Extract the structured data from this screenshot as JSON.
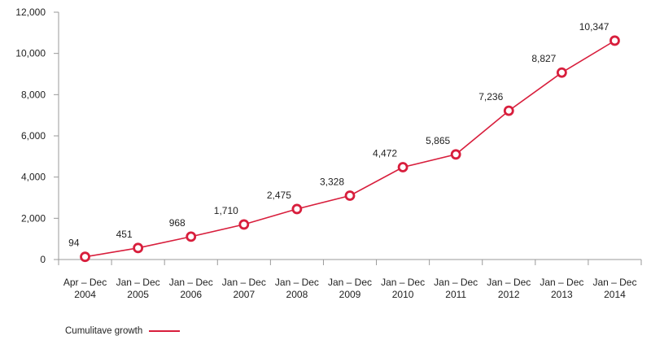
{
  "chart_data": {
    "type": "line",
    "categories": [
      [
        "Apr – Dec",
        "2004"
      ],
      [
        "Jan – Dec",
        "2005"
      ],
      [
        "Jan – Dec",
        "2006"
      ],
      [
        "Jan – Dec",
        "2007"
      ],
      [
        "Jan – Dec",
        "2008"
      ],
      [
        "Jan – Dec",
        "2009"
      ],
      [
        "Jan – Dec",
        "2010"
      ],
      [
        "Jan – Dec",
        "2011"
      ],
      [
        "Jan – Dec",
        "2012"
      ],
      [
        "Jan – Dec",
        "2013"
      ],
      [
        "Jan – Dec",
        "2014"
      ]
    ],
    "series": [
      {
        "name": "Cumulitave growth",
        "values": [
          94,
          451,
          968,
          1710,
          2475,
          3328,
          4472,
          5865,
          7236,
          8827,
          10347
        ],
        "point_values": [
          130,
          560,
          1110,
          1700,
          2450,
          3100,
          4480,
          5100,
          7220,
          9070,
          10620
        ],
        "labels": [
          "94",
          "451",
          "968",
          "1,710",
          "2,475",
          "3,328",
          "4,472",
          "5,865",
          "7,236",
          "8,827",
          "10,347"
        ]
      }
    ],
    "yticks": [
      0,
      2000,
      4000,
      6000,
      8000,
      10000,
      12000
    ],
    "ytick_labels": [
      "0",
      "2,000",
      "4,000",
      "6,000",
      "8,000",
      "10,000",
      "12,000"
    ],
    "ylim": [
      0,
      12000
    ],
    "title": "",
    "xlabel": "",
    "ylabel": "",
    "grid": false,
    "legend_position": "bottom-left",
    "colors": {
      "line": "#d81e3c",
      "axis": "#9a9a9a",
      "text": "#222222"
    }
  },
  "legend": {
    "label": "Cumulitave growth"
  }
}
